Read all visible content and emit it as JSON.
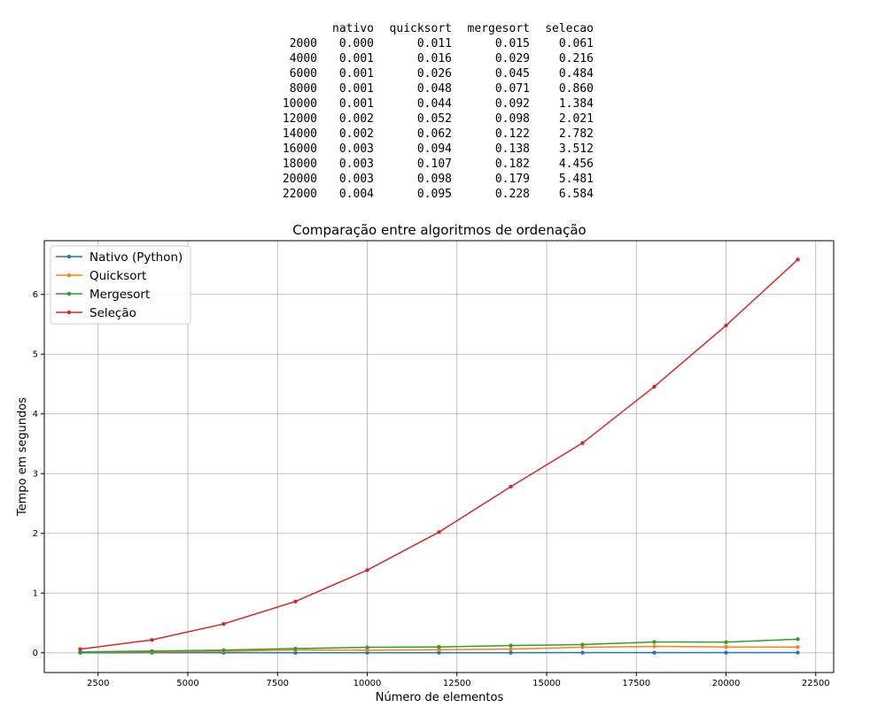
{
  "table": {
    "columns": [
      "nativo",
      "quicksort",
      "mergesort",
      "selecao"
    ],
    "rows": [
      {
        "index": "2000",
        "values": [
          "0.000",
          "0.011",
          "0.015",
          "0.061"
        ]
      },
      {
        "index": "4000",
        "values": [
          "0.001",
          "0.016",
          "0.029",
          "0.216"
        ]
      },
      {
        "index": "6000",
        "values": [
          "0.001",
          "0.026",
          "0.045",
          "0.484"
        ]
      },
      {
        "index": "8000",
        "values": [
          "0.001",
          "0.048",
          "0.071",
          "0.860"
        ]
      },
      {
        "index": "10000",
        "values": [
          "0.001",
          "0.044",
          "0.092",
          "1.384"
        ]
      },
      {
        "index": "12000",
        "values": [
          "0.002",
          "0.052",
          "0.098",
          "2.021"
        ]
      },
      {
        "index": "14000",
        "values": [
          "0.002",
          "0.062",
          "0.122",
          "2.782"
        ]
      },
      {
        "index": "16000",
        "values": [
          "0.003",
          "0.094",
          "0.138",
          "3.512"
        ]
      },
      {
        "index": "18000",
        "values": [
          "0.003",
          "0.107",
          "0.182",
          "4.456"
        ]
      },
      {
        "index": "20000",
        "values": [
          "0.003",
          "0.098",
          "0.179",
          "5.481"
        ]
      },
      {
        "index": "22000",
        "values": [
          "0.004",
          "0.095",
          "0.228",
          "6.584"
        ]
      }
    ]
  },
  "chart_data": {
    "type": "line",
    "title": "Comparação entre algoritmos de ordenação",
    "xlabel": "Número de elementos",
    "ylabel": "Tempo em segundos",
    "x": [
      2000,
      4000,
      6000,
      8000,
      10000,
      12000,
      14000,
      16000,
      18000,
      20000,
      22000
    ],
    "xlim": [
      1000,
      23000
    ],
    "ylim": [
      -0.33,
      6.9
    ],
    "xticks": [
      2500,
      5000,
      7500,
      10000,
      12500,
      15000,
      17500,
      20000,
      22500
    ],
    "yticks": [
      0,
      1,
      2,
      3,
      4,
      5,
      6
    ],
    "grid": true,
    "legend_position": "top-left",
    "series": [
      {
        "name": "Nativo (Python)",
        "color": "#1f77b4",
        "values": [
          0.0,
          0.001,
          0.001,
          0.001,
          0.001,
          0.002,
          0.002,
          0.003,
          0.003,
          0.003,
          0.004
        ]
      },
      {
        "name": "Quicksort",
        "color": "#ff7f0e",
        "values": [
          0.011,
          0.016,
          0.026,
          0.048,
          0.044,
          0.052,
          0.062,
          0.094,
          0.107,
          0.098,
          0.095
        ]
      },
      {
        "name": "Mergesort",
        "color": "#2ca02c",
        "values": [
          0.015,
          0.029,
          0.045,
          0.071,
          0.092,
          0.098,
          0.122,
          0.138,
          0.182,
          0.179,
          0.228
        ]
      },
      {
        "name": "Seleção",
        "color": "#d62728",
        "values": [
          0.061,
          0.216,
          0.484,
          0.86,
          1.384,
          2.021,
          2.782,
          3.512,
          4.456,
          5.481,
          6.584
        ]
      }
    ]
  }
}
